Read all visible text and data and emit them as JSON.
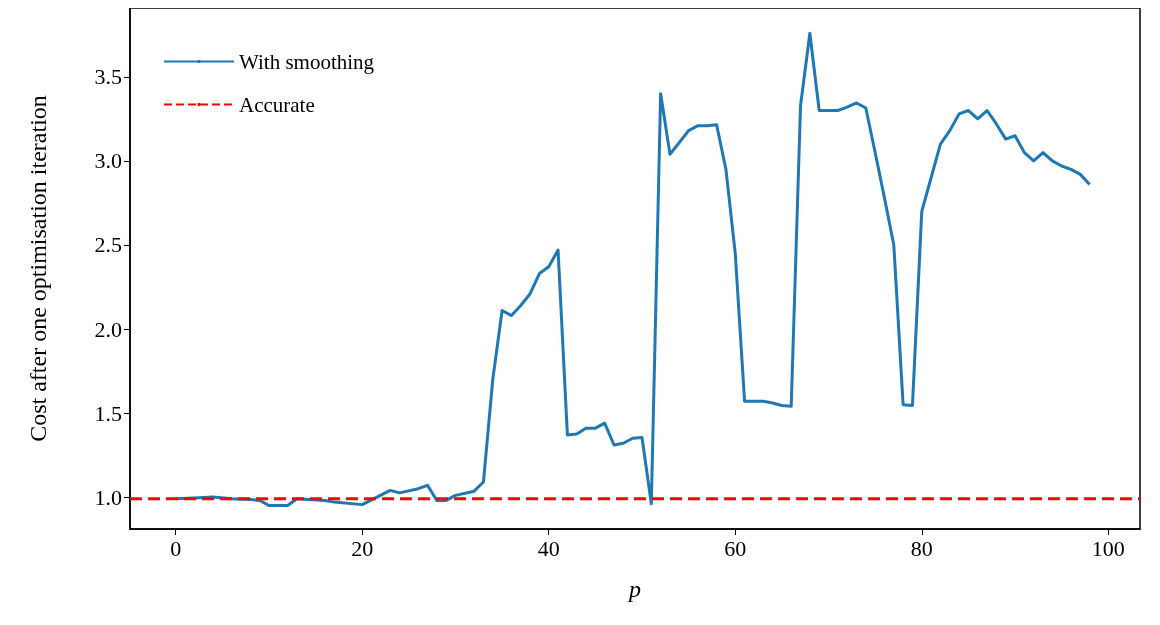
{
  "chart_data": {
    "type": "line",
    "xlabel": "p",
    "ylabel": "Cost after one optimisation iteration",
    "xlim": [
      -4.9,
      103.4
    ],
    "xticks": [
      0,
      20,
      40,
      60,
      80,
      100
    ],
    "ylim": [
      0.81,
      3.91
    ],
    "yticks": [
      {
        "value": 1,
        "label": "1.0"
      },
      {
        "value": 1.5,
        "label": "1.5"
      },
      {
        "value": 2,
        "label": "2.0"
      },
      {
        "value": 2.5,
        "label": "2.5"
      },
      {
        "value": 3,
        "label": "3.0"
      },
      {
        "value": 3.5,
        "label": "3.5"
      }
    ],
    "grid": false,
    "legend": "top left",
    "marker": "none",
    "series": [
      {
        "name": "With smoothing",
        "color": "#1f77b4",
        "line_style": "solid",
        "x": [
          0,
          2,
          4,
          6,
          8,
          9,
          10,
          12,
          13,
          16,
          17,
          20,
          23,
          24,
          26,
          27,
          28,
          29,
          30,
          32,
          33,
          34,
          35,
          36,
          37,
          38,
          39,
          40,
          41,
          42,
          43,
          44,
          45,
          46,
          47,
          48,
          49,
          50,
          51,
          52,
          53,
          54,
          55,
          56,
          57,
          58,
          59,
          60,
          61,
          62,
          63,
          64,
          65,
          66,
          67,
          68,
          69,
          70,
          71,
          72,
          73,
          74,
          75,
          76,
          77,
          78,
          79,
          80,
          81,
          82,
          83,
          84,
          85,
          86,
          87,
          88,
          89,
          90,
          91,
          92,
          93,
          94,
          95,
          96,
          97,
          98
        ],
        "values": [
          0.99,
          0.995,
          1.0,
          0.99,
          0.985,
          0.98,
          0.95,
          0.95,
          0.99,
          0.98,
          0.97,
          0.955,
          1.04,
          1.025,
          1.05,
          1.07,
          0.98,
          0.98,
          1.01,
          1.035,
          1.09,
          1.7,
          2.11,
          2.08,
          2.14,
          2.21,
          2.33,
          2.37,
          2.47,
          1.37,
          1.375,
          1.41,
          1.41,
          1.44,
          1.31,
          1.32,
          1.35,
          1.355,
          0.96,
          3.4,
          3.04,
          3.11,
          3.18,
          3.21,
          3.21,
          3.215,
          2.95,
          2.45,
          1.57,
          1.57,
          1.57,
          1.56,
          1.545,
          1.54,
          3.33,
          3.76,
          3.3,
          3.3,
          3.3,
          3.32,
          3.345,
          3.315,
          3.05,
          2.78,
          2.5,
          1.55,
          1.545,
          2.7,
          2.9,
          3.1,
          3.18,
          3.28,
          3.3,
          3.25,
          3.3,
          3.22,
          3.13,
          3.15,
          3.05,
          3.0,
          3.05,
          3.0,
          2.97,
          2.95,
          2.92,
          2.86
        ]
      },
      {
        "name": "Accurate",
        "color": "#ff0000",
        "line_style": "dashed",
        "x": [
          -4.9,
          103.4
        ],
        "values": [
          0.99,
          0.99
        ]
      }
    ]
  }
}
